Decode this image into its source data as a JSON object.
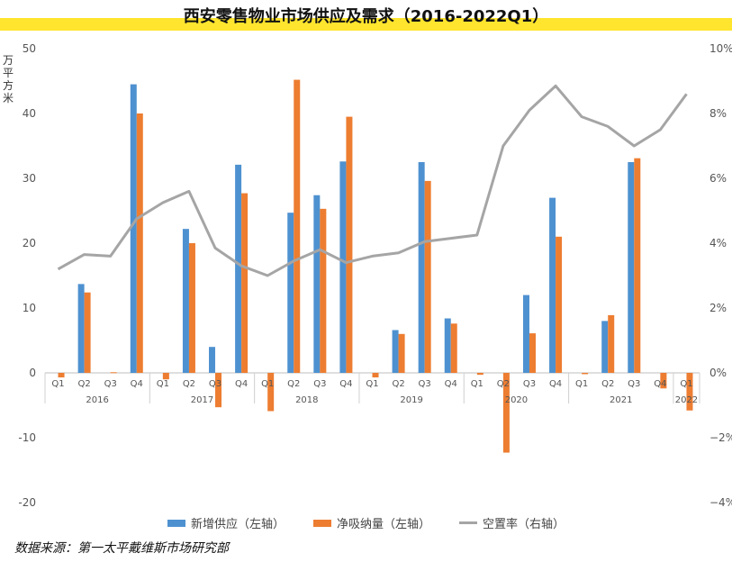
{
  "title": "西安零售物业市场供应及需求（2016-2022Q1）",
  "unit_label": "万平方米",
  "source": "数据来源：第一太平戴维斯市场研究部",
  "colors": {
    "supply": "#4e91d0",
    "absorption": "#ed7d31",
    "vacancy": "#a5a5a5",
    "band": "#ffe52e"
  },
  "legend": [
    "新增供应（左轴）",
    "净吸纳量（左轴）",
    "空置率（右轴）"
  ],
  "chart_data": {
    "type": "bar",
    "categories": [
      "Q1",
      "Q2",
      "Q3",
      "Q4",
      "Q1",
      "Q2",
      "Q3",
      "Q4",
      "Q1",
      "Q2",
      "Q3",
      "Q4",
      "Q1",
      "Q2",
      "Q3",
      "Q4",
      "Q1",
      "Q2",
      "Q3",
      "Q4",
      "Q1",
      "Q2",
      "Q3",
      "Q4",
      "Q1"
    ],
    "years": [
      {
        "label": "2016",
        "count": 4
      },
      {
        "label": "2017",
        "count": 4
      },
      {
        "label": "2018",
        "count": 4
      },
      {
        "label": "2019",
        "count": 4
      },
      {
        "label": "2020",
        "count": 4
      },
      {
        "label": "2021",
        "count": 4
      },
      {
        "label": "2022",
        "count": 1
      }
    ],
    "series": [
      {
        "name": "新增供应（左轴）",
        "type": "bar",
        "axis": "left",
        "values": [
          0,
          13.7,
          0,
          44.5,
          0,
          22.2,
          4.0,
          32.1,
          0,
          24.7,
          27.4,
          32.6,
          0,
          6.6,
          32.5,
          8.4,
          0,
          0,
          12.0,
          27.0,
          0,
          8.0,
          32.5,
          0,
          0
        ]
      },
      {
        "name": "净吸纳量（左轴）",
        "type": "bar",
        "axis": "left",
        "values": [
          -0.7,
          12.4,
          0.1,
          40.0,
          -1.0,
          20.0,
          -5.3,
          27.7,
          -5.9,
          45.2,
          25.3,
          39.5,
          -0.7,
          6.0,
          29.6,
          7.6,
          -0.3,
          -12.3,
          6.1,
          21.0,
          -0.2,
          8.9,
          33.1,
          -2.4,
          -5.8
        ]
      },
      {
        "name": "空置率（右轴）",
        "type": "line",
        "axis": "right",
        "values": [
          3.2,
          3.65,
          3.6,
          4.75,
          5.25,
          5.6,
          3.85,
          3.3,
          3.0,
          3.45,
          3.8,
          3.4,
          3.6,
          3.7,
          4.05,
          4.15,
          4.25,
          7.0,
          8.1,
          8.85,
          7.9,
          7.6,
          7.0,
          7.5,
          8.6
        ]
      }
    ],
    "y_left": {
      "min": -20,
      "max": 50,
      "ticks": [
        50,
        40,
        30,
        20,
        10,
        0,
        -10,
        -20
      ]
    },
    "y_right": {
      "min": -4,
      "max": 10,
      "ticks": [
        "10%",
        "8%",
        "6%",
        "4%",
        "2%",
        "0%",
        "−2%",
        "−4%"
      ]
    },
    "grid": false,
    "legend_position": "bottom"
  }
}
